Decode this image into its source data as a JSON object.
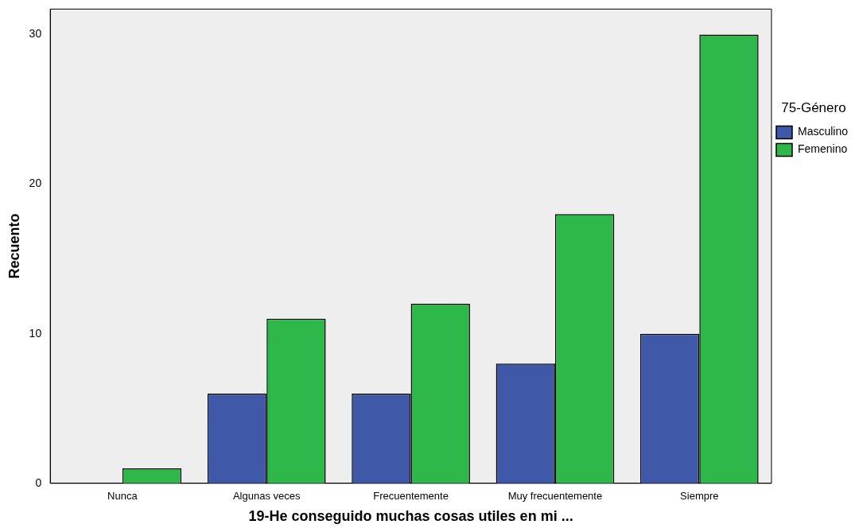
{
  "chart_data": {
    "type": "bar",
    "xlabel": "19-He conseguido muchas cosas utiles en mi ...",
    "ylabel": "Recuento",
    "legend_title": "75-Género",
    "legend": "top right",
    "grid": false,
    "categories": [
      "Nunca",
      "Algunas veces",
      "Frecuentemente",
      "Muy frecuentemente",
      "Siempre"
    ],
    "series": [
      {
        "name": "Masculino",
        "color": "#3f58a8",
        "values": [
          0,
          6,
          6,
          8,
          10
        ]
      },
      {
        "name": "Femenino",
        "color": "#2fb84a",
        "values": [
          1,
          11,
          12,
          18,
          30
        ]
      }
    ],
    "ylim": [
      0,
      31.7
    ],
    "yticks": [
      0,
      10,
      20,
      30
    ]
  }
}
